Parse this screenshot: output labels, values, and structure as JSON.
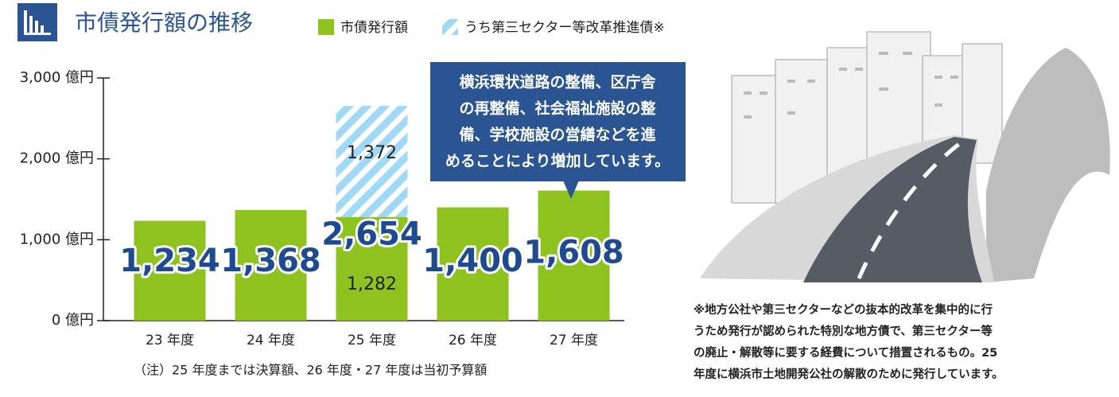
{
  "chart_data": {
    "type": "bar",
    "title": "市債発行額の推移",
    "categories": [
      "23 年度",
      "24 年度",
      "25 年度",
      "26 年度",
      "27 年度"
    ],
    "series": [
      {
        "name": "市債発行額",
        "color": "#8dc21f",
        "values": [
          1234,
          1368,
          1282,
          1400,
          1608
        ],
        "value_labels": [
          null,
          null,
          "1,282",
          null,
          null
        ]
      },
      {
        "name": "うち第三セクター等改革推進債※",
        "color": "#9fd9f6",
        "values": [
          null,
          null,
          1372,
          null,
          null
        ],
        "value_labels": [
          null,
          null,
          "1,372",
          null,
          null
        ]
      }
    ],
    "totals": [
      1234,
      1368,
      2654,
      1400,
      1608
    ],
    "total_labels": [
      "1,234",
      "1,368",
      "2,654",
      "1,400",
      "1,608"
    ],
    "stacked": true,
    "ylim": [
      0,
      3000
    ],
    "yticks": [
      {
        "value": 0,
        "label": "0 億円"
      },
      {
        "value": 1000,
        "label": "1,000 億円"
      },
      {
        "value": 2000,
        "label": "2,000 億円"
      },
      {
        "value": 3000,
        "label": "3,000 億円"
      }
    ],
    "annotation": [
      "横浜環状道路の整備、区庁舎",
      "の再整備、社会福祉施設の整",
      "備、学校施設の営繕などを進",
      "めることにより増加しています。"
    ],
    "note": "（注）25 年度までは決算額、26 年度・27 年度は当初予算額",
    "footnote": [
      "※地方公社や第三セクターなどの抜本的改革を集中的に行",
      "うため発行が認められた特別な地方債で、第三セクター等",
      "の廃止・解散等に要する経費について措置されるもの。25",
      "年度に横浜市土地開発公社の解散のために発行しています。"
    ]
  }
}
